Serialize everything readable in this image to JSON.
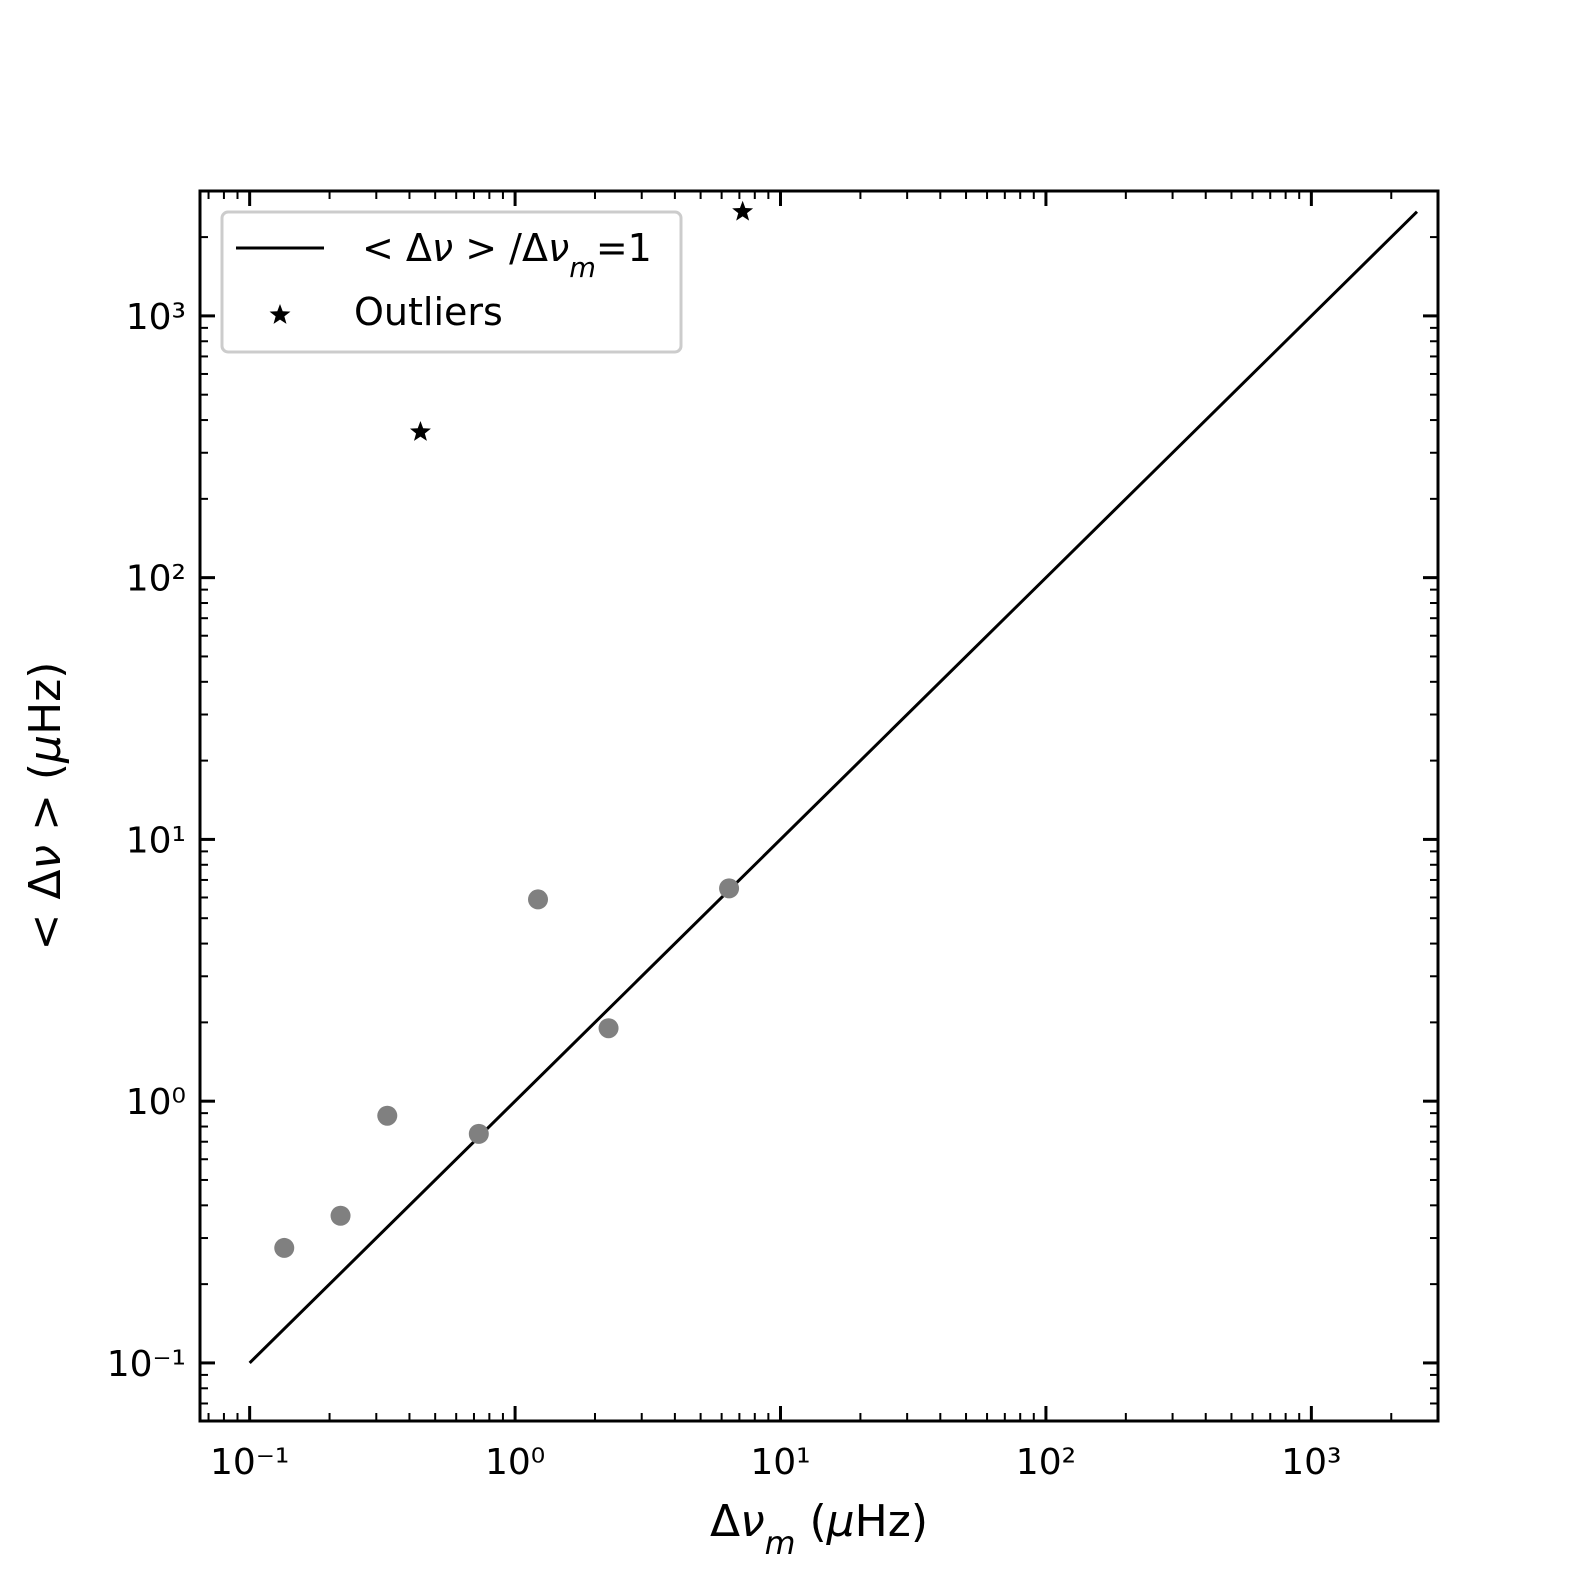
{
  "chart_data": {
    "type": "scatter",
    "xscale": "log",
    "yscale": "log",
    "xlim": [
      0.065,
      3000
    ],
    "ylim": [
      0.06,
      3000
    ],
    "xlabel": "Δν_m (μHz)",
    "ylabel": "< Δν > (μHz)",
    "x_tick_labels": [
      "10⁻¹",
      "10⁰",
      "10¹",
      "10²",
      "10³"
    ],
    "y_tick_labels": [
      "10⁻¹",
      "10⁰",
      "10¹",
      "10²",
      "10³"
    ],
    "x_ticks": [
      0.1,
      1,
      10,
      100,
      1000
    ],
    "y_ticks": [
      0.1,
      1,
      10,
      100,
      1000
    ],
    "legend_position": "upper-left",
    "grid": false,
    "series": [
      {
        "name": "< Δν >/Δν_m=1",
        "kind": "line",
        "color": "#000000",
        "x": [
          0.1,
          2500
        ],
        "y": [
          0.1,
          2500
        ]
      },
      {
        "name": "Outliers",
        "kind": "scatter",
        "marker": "star",
        "color": "#000000",
        "x": [
          0.44,
          7.2
        ],
        "y": [
          360,
          2500
        ]
      },
      {
        "kind": "scatter",
        "marker": "circle",
        "color": "#808080",
        "x": [
          0.135,
          0.22,
          0.33,
          0.73,
          1.22,
          2.25,
          6.4
        ],
        "y": [
          0.275,
          0.365,
          0.88,
          0.75,
          5.9,
          1.9,
          6.5
        ]
      }
    ]
  }
}
